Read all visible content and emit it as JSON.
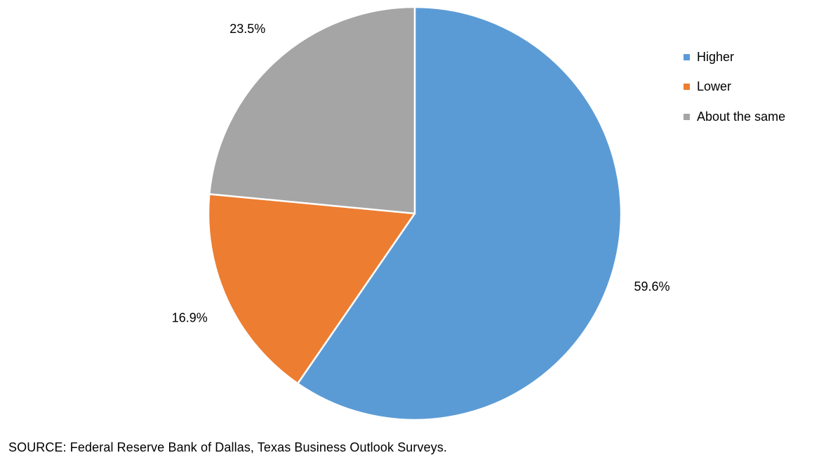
{
  "chart_data": {
    "type": "pie",
    "start_angle_deg": 0,
    "direction": "clockwise",
    "slices": [
      {
        "name": "Higher",
        "value": 59.6,
        "label": "59.6%",
        "color": "#5B9BD5"
      },
      {
        "name": "Lower",
        "value": 16.9,
        "label": "16.9%",
        "color": "#ED7D31"
      },
      {
        "name": "About the same",
        "value": 23.5,
        "label": "23.5%",
        "color": "#A5A5A5"
      }
    ],
    "legend_position": "right"
  },
  "source": "SOURCE: Federal Reserve Bank of Dallas, Texas Business Outlook Surveys."
}
